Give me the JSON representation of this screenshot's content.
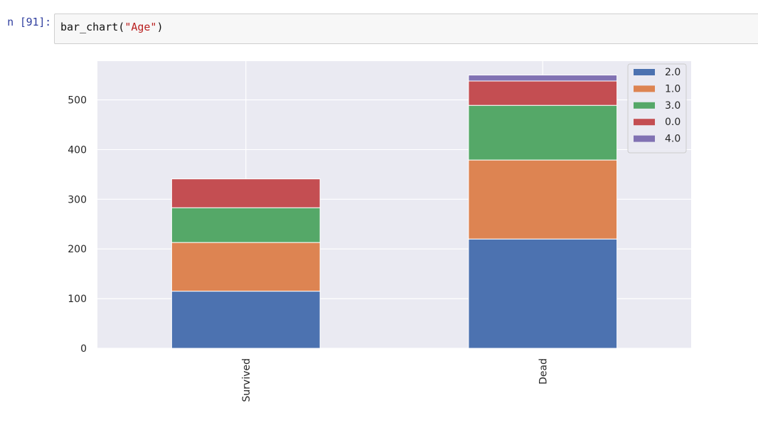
{
  "cell": {
    "prompt": "n [91]:",
    "code_func": "bar_chart(",
    "code_arg": "\"Age\"",
    "code_close": ")"
  },
  "colors": {
    "plot_bg": "#eaeaf2",
    "grid": "#ffffff",
    "string": "#ba2121",
    "prompt": "#303f9f"
  },
  "chart_data": {
    "type": "bar",
    "stacked": true,
    "categories": [
      "Survived",
      "Dead"
    ],
    "series": [
      {
        "name": "2.0",
        "values": [
          115,
          220
        ],
        "color": "#4c72b0"
      },
      {
        "name": "1.0",
        "values": [
          98,
          159
        ],
        "color": "#dd8452"
      },
      {
        "name": "3.0",
        "values": [
          70,
          110
        ],
        "color": "#55a868"
      },
      {
        "name": "0.0",
        "values": [
          58,
          49
        ],
        "color": "#c44e52"
      },
      {
        "name": "4.0",
        "values": [
          0,
          12
        ],
        "color": "#8172b3"
      }
    ],
    "yticks": [
      0,
      100,
      200,
      300,
      400,
      500
    ],
    "ylim": [
      0,
      578
    ],
    "xlabel": "",
    "ylabel": "",
    "grid": true,
    "legend": "top-right",
    "tick_label_rotation": "vertical"
  }
}
